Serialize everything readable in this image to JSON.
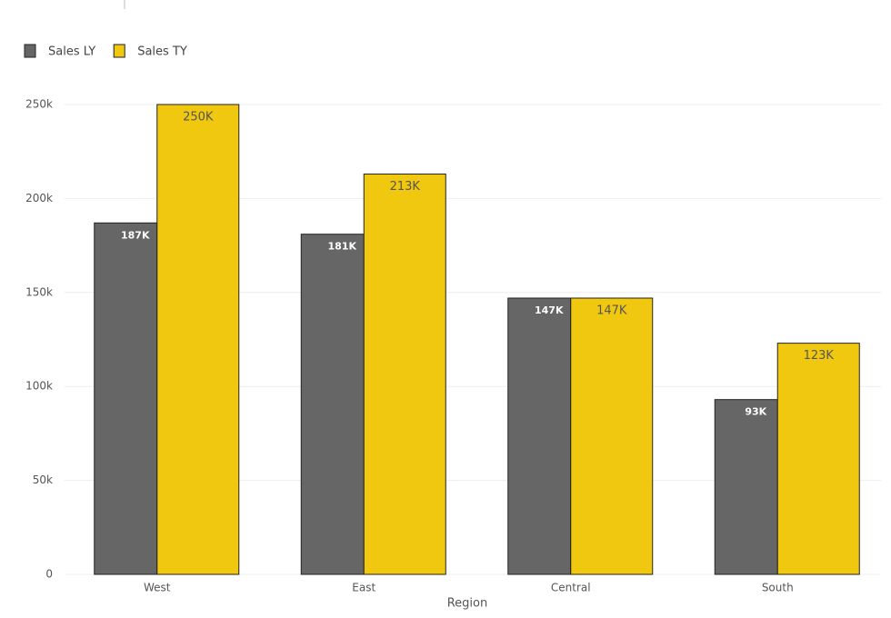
{
  "chart_data": {
    "type": "bar",
    "x_label": "Region",
    "categories": [
      "West",
      "East",
      "Central",
      "South"
    ],
    "series": [
      {
        "name": "Sales LY",
        "color": "#666666",
        "values": [
          187000,
          181000,
          147000,
          93000
        ],
        "value_labels": [
          "187K",
          "181K",
          "147K",
          "93K"
        ]
      },
      {
        "name": "Sales TY",
        "color": "#f0c80f",
        "values": [
          250000,
          213000,
          147000,
          123000
        ],
        "value_labels": [
          "250K",
          "213K",
          "147K",
          "123K"
        ]
      }
    ],
    "ylim": [
      0,
      250000
    ],
    "yticks": [
      0,
      {
        "value": 50000,
        "label": "50k"
      },
      {
        "value": 100000,
        "label": "100k"
      },
      {
        "value": 150000,
        "label": "150k"
      },
      {
        "value": 200000,
        "label": "200k"
      },
      {
        "value": 250000,
        "label": "250k"
      }
    ],
    "grid": true,
    "legend": "top-left"
  }
}
